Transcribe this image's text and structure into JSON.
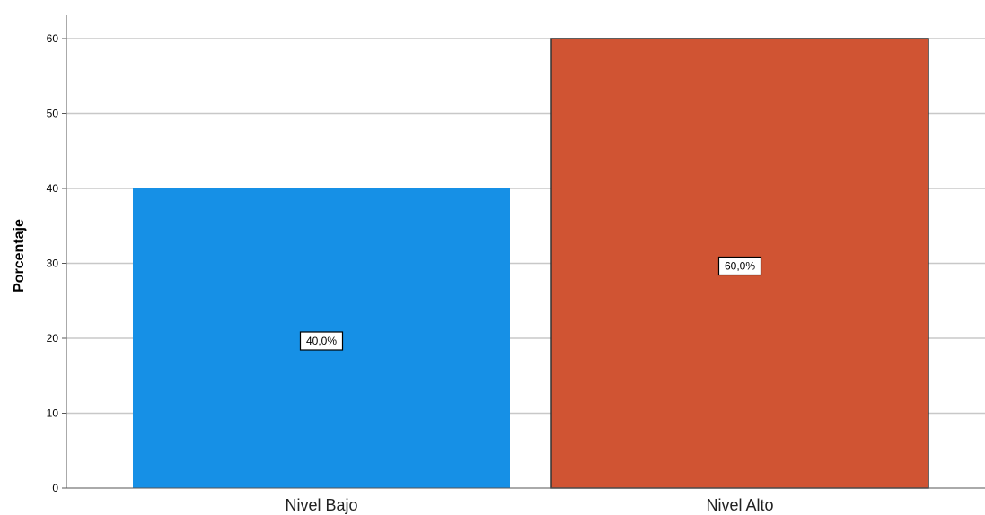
{
  "chart_data": {
    "type": "bar",
    "categories": [
      "Nivel Bajo",
      "Nivel Alto"
    ],
    "values": [
      40,
      60
    ],
    "data_labels": [
      "40,0%",
      "60,0%"
    ],
    "colors": [
      "#1690E6",
      "#D05433"
    ],
    "title": "",
    "xlabel": "",
    "ylabel": "Porcentaje",
    "ylim": [
      0,
      60
    ],
    "yticks": [
      0,
      10,
      20,
      30,
      40,
      50,
      60
    ],
    "grid": true,
    "legend": "none"
  }
}
